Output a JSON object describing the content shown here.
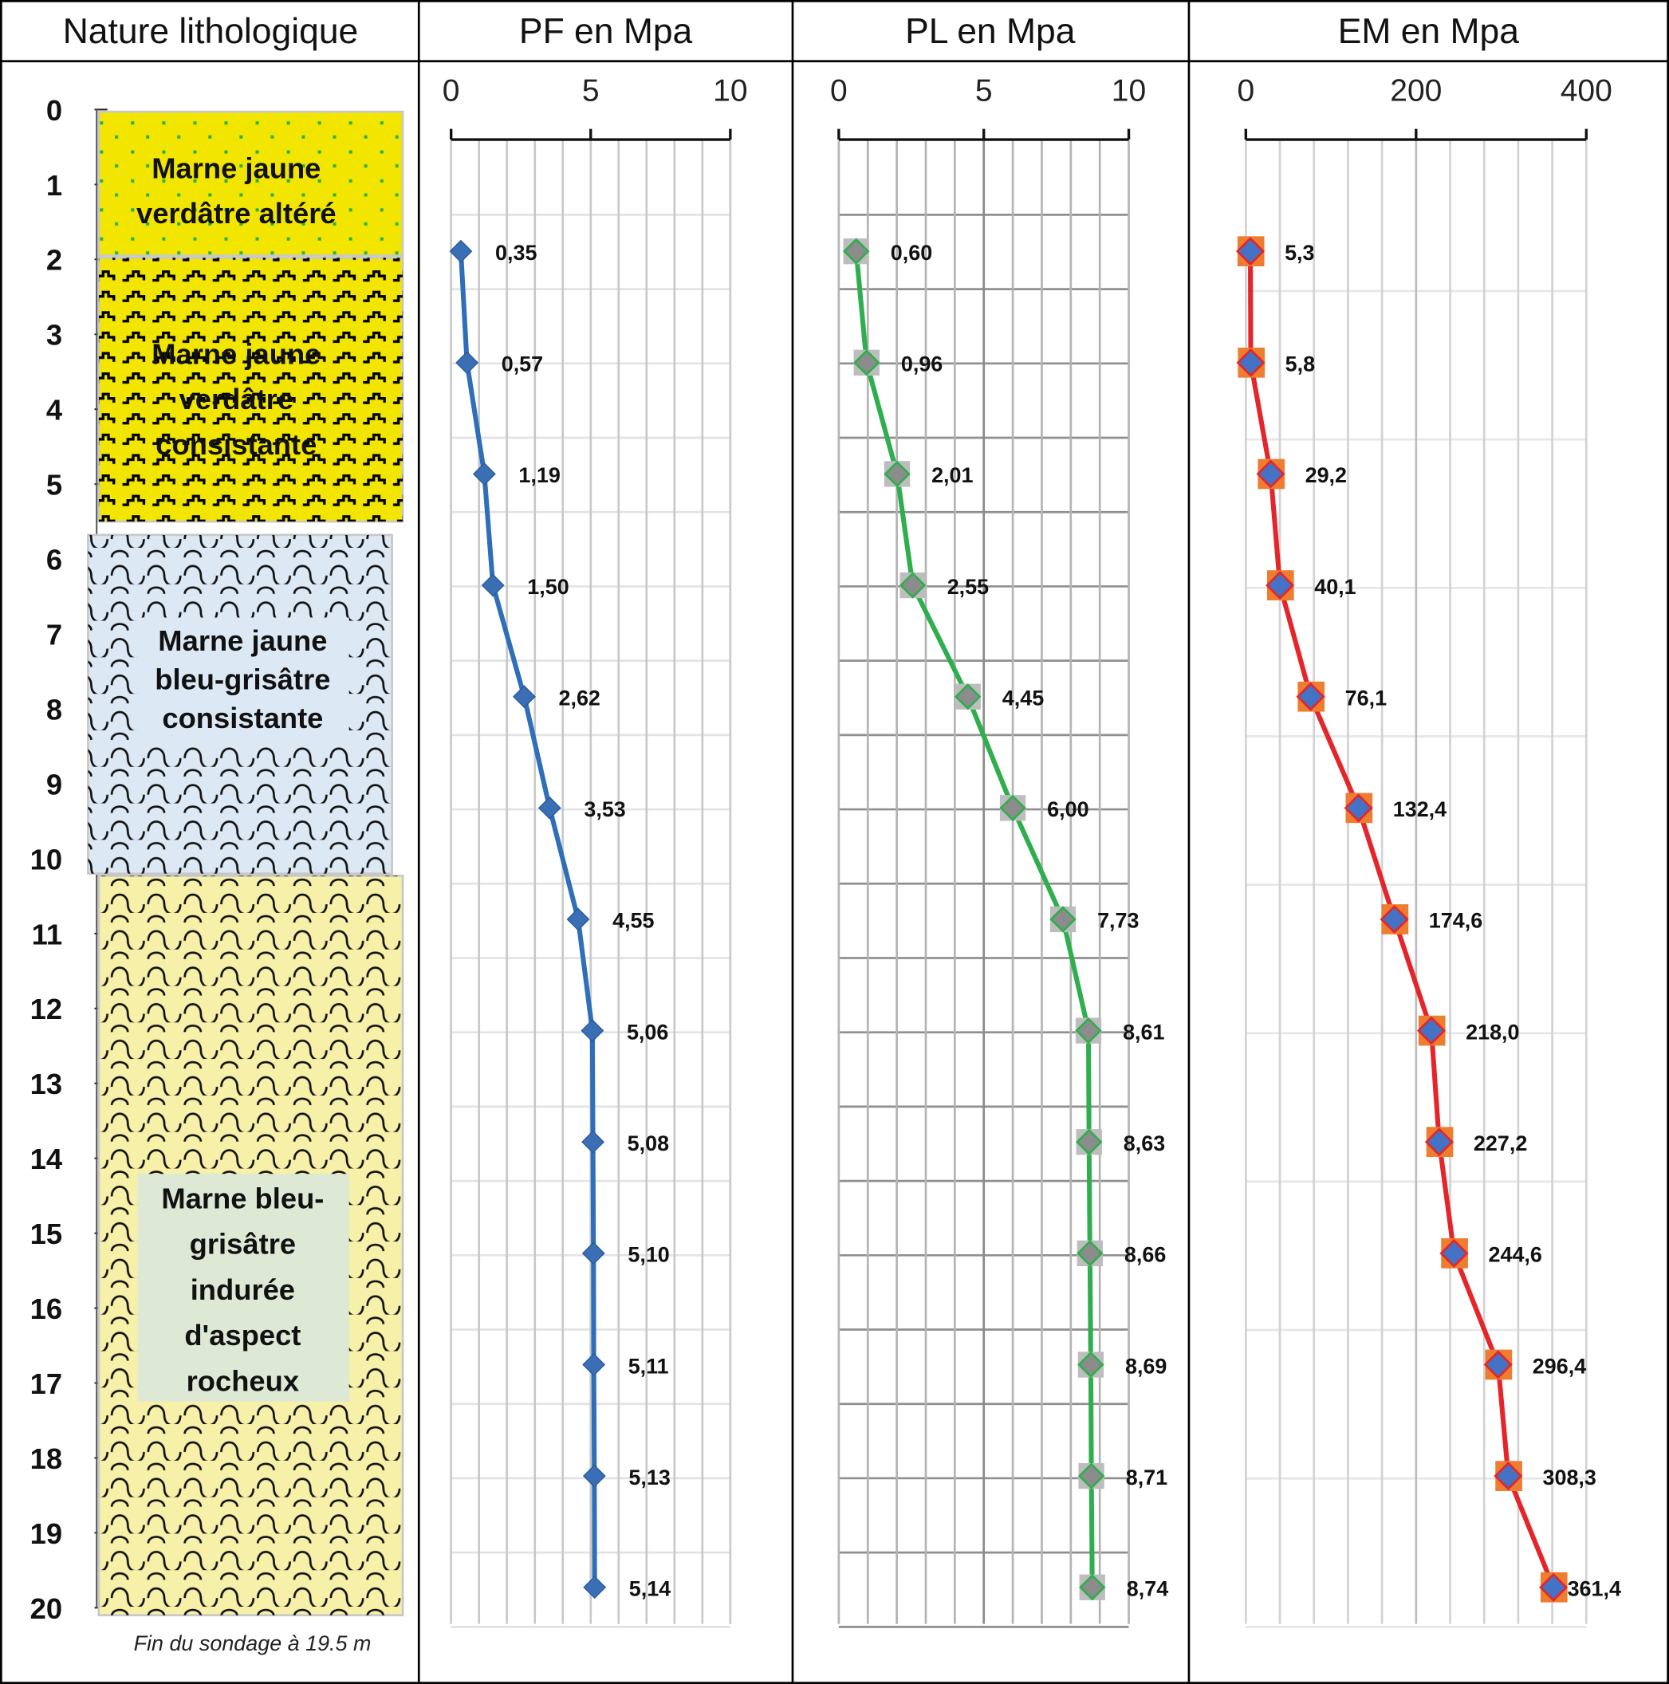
{
  "headers": {
    "lithology": "Nature lithologique",
    "pf": "PF en Mpa",
    "pl": "PL en Mpa",
    "em": "EM en Mpa"
  },
  "depth_axis": {
    "ticks": [
      "0",
      "1",
      "2",
      "3",
      "4",
      "5",
      "6",
      "7",
      "8",
      "9",
      "10",
      "11",
      "12",
      "13",
      "14",
      "15",
      "16",
      "17",
      "18",
      "19",
      "20"
    ]
  },
  "lithology": {
    "layers": [
      {
        "top": 0,
        "bottom": 1.95,
        "texture": "dots",
        "fill": "#f2e600",
        "lines": [
          "Marne jaune",
          "verdâtre altéré"
        ]
      },
      {
        "top": 1.95,
        "bottom": 5.5,
        "texture": "wavy",
        "fill": "#f2e600",
        "lines": [
          "Marne jaune",
          "verdâtre",
          "consistante"
        ]
      },
      {
        "top": 5.65,
        "bottom": 10.2,
        "texture": "scallop",
        "fill": "#dce9f5",
        "lines": [
          "Marne jaune",
          "bleu-grisâtre",
          "consistante"
        ]
      },
      {
        "top": 10.2,
        "bottom": 20.1,
        "texture": "scallop",
        "fill": "#f7f0a8",
        "lines": [
          "Marne bleu-",
          "grisâtre",
          "indurée",
          "d'aspect",
          "rocheux"
        ]
      }
    ],
    "end_note": "Fin du sondage à 19.5 m"
  },
  "chart_data": [
    {
      "type": "line",
      "title": "PF en Mpa",
      "xlim": [
        0,
        10
      ],
      "xticks": [
        "0",
        "5",
        "10"
      ],
      "depths": [
        2,
        3.5,
        5,
        6.5,
        8,
        9.5,
        11,
        12.5,
        14,
        15.5,
        17,
        18.5,
        20
      ],
      "values": [
        0.35,
        0.57,
        1.19,
        1.5,
        2.62,
        3.53,
        4.55,
        5.06,
        5.08,
        5.1,
        5.11,
        5.13,
        5.14
      ],
      "labels": [
        "0,35",
        "0,57",
        "1,19",
        "1,50",
        "2,62",
        "3,53",
        "4,55",
        "5,06",
        "5,08",
        "5,10",
        "5,11",
        "5,13",
        "5,14"
      ],
      "line_color": "#2f6fba"
    },
    {
      "type": "line",
      "title": "PL en Mpa",
      "xlim": [
        0,
        10
      ],
      "xticks": [
        "0",
        "5",
        "10"
      ],
      "depths": [
        2,
        3.5,
        5,
        6.5,
        8,
        9.5,
        11,
        12.5,
        14,
        15.5,
        17,
        18.5,
        20
      ],
      "values": [
        0.6,
        0.96,
        2.01,
        2.55,
        4.45,
        6.0,
        7.73,
        8.61,
        8.63,
        8.66,
        8.69,
        8.71,
        8.74
      ],
      "labels": [
        "0,60",
        "0,96",
        "2,01",
        "2,55",
        "4,45",
        "6,00",
        "7,73",
        "8,61",
        "8,63",
        "8,66",
        "8,69",
        "8,71",
        "8,74"
      ],
      "line_color": "#2fae4e"
    },
    {
      "type": "line",
      "title": "EM en Mpa",
      "xlim": [
        0,
        400
      ],
      "xticks": [
        "0",
        "200",
        "400"
      ],
      "depths": [
        2,
        3.5,
        5,
        6.5,
        8,
        9.5,
        11,
        12.5,
        14,
        15.5,
        17,
        18.5,
        20
      ],
      "values": [
        5.3,
        5.8,
        29.2,
        40.1,
        76.1,
        132.4,
        174.6,
        218.0,
        227.2,
        244.6,
        296.4,
        308.3,
        361.4
      ],
      "labels": [
        "5,3",
        "5,8",
        "29,2",
        "40,1",
        "76,1",
        "132,4",
        "174,6",
        "218,0",
        "227,2",
        "244,6",
        "296,4",
        "308,3",
        "361,4"
      ],
      "line_color": "#e5252a"
    }
  ]
}
